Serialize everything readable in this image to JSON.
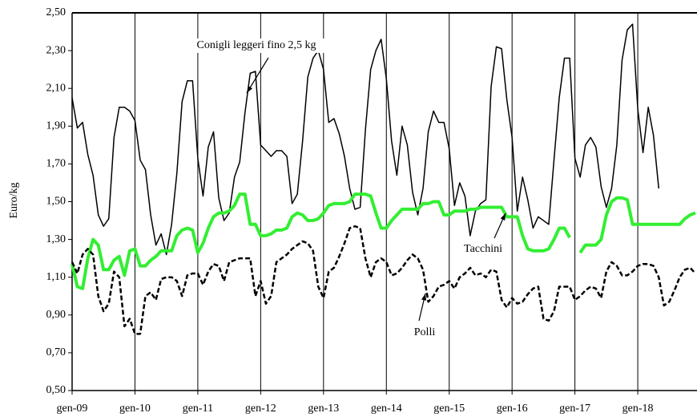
{
  "chart_data": {
    "type": "line",
    "y_label": "Euro/kg",
    "categories": [
      "gen-09",
      null,
      null,
      null,
      null,
      null,
      null,
      null,
      null,
      null,
      null,
      null,
      "gen-10",
      null,
      null,
      null,
      null,
      null,
      null,
      null,
      null,
      null,
      null,
      null,
      "gen-11",
      null,
      null,
      null,
      null,
      null,
      null,
      null,
      null,
      null,
      null,
      null,
      "gen-12",
      null,
      null,
      null,
      null,
      null,
      null,
      null,
      null,
      null,
      null,
      null,
      "gen-13",
      null,
      null,
      null,
      null,
      null,
      null,
      null,
      null,
      null,
      null,
      null,
      "gen-14",
      null,
      null,
      null,
      null,
      null,
      null,
      null,
      null,
      null,
      null,
      null,
      "gen-15",
      null,
      null,
      null,
      null,
      null,
      null,
      null,
      null,
      null,
      null,
      null,
      "gen-16",
      null,
      null,
      null,
      null,
      null,
      null,
      null,
      null,
      null,
      null,
      null,
      "gen-17",
      null,
      null,
      null,
      null,
      null,
      null,
      null,
      null,
      null,
      null,
      null,
      "gen-18",
      null,
      null,
      null,
      null,
      null,
      null,
      null,
      null,
      null,
      null,
      null
    ],
    "series": [
      {
        "name": "Conigli leggeri fino 2,5 kg",
        "color": "#000000",
        "width": 1.5,
        "line_style": "solid",
        "values": [
          2.05,
          1.89,
          1.92,
          1.75,
          1.64,
          1.43,
          1.37,
          1.41,
          1.84,
          2.0,
          2.0,
          1.98,
          1.93,
          1.72,
          1.67,
          1.43,
          1.27,
          1.33,
          1.22,
          1.38,
          1.65,
          2.03,
          2.14,
          2.14,
          1.73,
          1.53,
          1.79,
          1.87,
          1.52,
          1.4,
          1.44,
          1.63,
          1.71,
          1.97,
          2.18,
          2.19,
          1.8,
          1.77,
          1.74,
          1.77,
          1.77,
          1.74,
          1.49,
          1.54,
          1.82,
          2.16,
          2.26,
          2.3,
          2.2,
          1.92,
          1.94,
          1.86,
          1.74,
          1.57,
          1.46,
          1.47,
          1.88,
          2.2,
          2.3,
          2.36,
          2.15,
          1.82,
          1.64,
          1.9,
          1.8,
          1.55,
          1.43,
          1.57,
          1.87,
          1.98,
          1.92,
          1.92,
          1.78,
          1.48,
          1.6,
          1.53,
          1.32,
          1.45,
          1.49,
          1.51,
          2.11,
          2.32,
          2.31,
          2.04,
          1.84,
          1.45,
          1.63,
          1.51,
          1.36,
          1.42,
          1.4,
          1.38,
          1.72,
          2.05,
          2.26,
          2.26,
          1.73,
          1.63,
          1.8,
          1.84,
          1.79,
          1.58,
          1.47,
          1.57,
          1.8,
          2.25,
          2.41,
          2.44,
          1.99,
          1.76,
          2.0,
          1.85,
          1.57,
          null,
          null,
          null,
          null,
          null,
          null,
          null
        ]
      },
      {
        "name": "Tacchini",
        "color": "#33ee33",
        "width": 4,
        "line_style": "solid",
        "values": [
          1.17,
          1.05,
          1.04,
          1.2,
          1.3,
          1.27,
          1.14,
          1.14,
          1.19,
          1.21,
          1.11,
          1.24,
          1.25,
          1.16,
          1.16,
          1.19,
          1.21,
          1.24,
          1.24,
          1.24,
          1.32,
          1.35,
          1.36,
          1.35,
          1.23,
          1.28,
          1.36,
          1.42,
          1.44,
          1.44,
          1.45,
          1.48,
          1.54,
          1.54,
          1.38,
          1.38,
          1.32,
          1.32,
          1.33,
          1.35,
          1.35,
          1.36,
          1.42,
          1.44,
          1.43,
          1.4,
          1.4,
          1.41,
          1.44,
          1.48,
          1.49,
          1.49,
          1.49,
          1.5,
          1.54,
          1.54,
          1.54,
          1.53,
          1.44,
          1.36,
          1.36,
          1.4,
          1.43,
          1.46,
          1.46,
          1.46,
          1.46,
          1.49,
          1.49,
          1.5,
          1.5,
          1.43,
          1.43,
          1.45,
          1.45,
          1.45,
          1.46,
          1.46,
          1.47,
          1.47,
          1.47,
          1.47,
          1.47,
          1.42,
          1.42,
          1.42,
          1.32,
          1.25,
          1.24,
          1.24,
          1.24,
          1.25,
          1.3,
          1.36,
          1.36,
          1.31,
          null,
          1.23,
          1.27,
          1.27,
          1.27,
          1.3,
          1.43,
          1.5,
          1.52,
          1.52,
          1.51,
          1.38,
          1.38,
          1.38,
          1.38,
          1.38,
          1.38,
          1.38,
          1.38,
          1.38,
          1.38,
          1.41,
          1.43,
          1.44
        ]
      },
      {
        "name": "Polli",
        "color": "#000000",
        "width": 2.5,
        "line_style": "dashed",
        "values": [
          1.18,
          1.12,
          1.22,
          1.25,
          1.22,
          1.0,
          0.92,
          0.96,
          1.13,
          1.1,
          0.84,
          0.88,
          0.8,
          0.8,
          1.0,
          1.02,
          0.98,
          1.09,
          1.1,
          1.1,
          1.08,
          1.0,
          1.11,
          1.12,
          1.12,
          1.06,
          1.13,
          1.17,
          1.16,
          1.08,
          1.18,
          1.19,
          1.2,
          1.2,
          1.2,
          1.0,
          1.08,
          0.96,
          1.0,
          1.18,
          1.2,
          1.22,
          1.25,
          1.27,
          1.29,
          1.28,
          1.24,
          1.05,
          0.99,
          1.13,
          1.15,
          1.21,
          1.28,
          1.36,
          1.37,
          1.36,
          1.2,
          1.1,
          1.18,
          1.2,
          1.18,
          1.11,
          1.12,
          1.15,
          1.19,
          1.22,
          1.2,
          1.14,
          0.97,
          1.0,
          1.05,
          1.06,
          1.08,
          1.04,
          1.1,
          1.12,
          1.15,
          1.11,
          1.12,
          1.1,
          1.14,
          1.13,
          0.98,
          0.94,
          0.99,
          0.96,
          0.97,
          1.01,
          1.04,
          1.05,
          0.88,
          0.87,
          0.92,
          1.05,
          1.05,
          1.05,
          0.98,
          1.0,
          1.03,
          1.05,
          1.04,
          0.99,
          1.13,
          1.18,
          1.16,
          1.11,
          1.11,
          1.13,
          1.16,
          1.17,
          1.17,
          1.16,
          1.1,
          0.95,
          0.97,
          1.03,
          1.1,
          1.14,
          1.15,
          1.12
        ]
      }
    ],
    "ylim": [
      0.5,
      2.5
    ],
    "yticks": [
      {
        "value": 0.5,
        "label": "0,50"
      },
      {
        "value": 0.7,
        "label": "0,70"
      },
      {
        "value": 0.9,
        "label": "0,90"
      },
      {
        "value": 1.1,
        "label": "1,10"
      },
      {
        "value": 1.3,
        "label": "1,30"
      },
      {
        "value": 1.5,
        "label": "1,50"
      },
      {
        "value": 1.7,
        "label": "1,70"
      },
      {
        "value": 1.9,
        "label": "1,90"
      },
      {
        "value": 2.1,
        "label": "2,10"
      },
      {
        "value": 2.3,
        "label": "2,30"
      },
      {
        "value": 2.5,
        "label": "2,50"
      }
    ],
    "x_grid": true,
    "legend": "annotations"
  }
}
